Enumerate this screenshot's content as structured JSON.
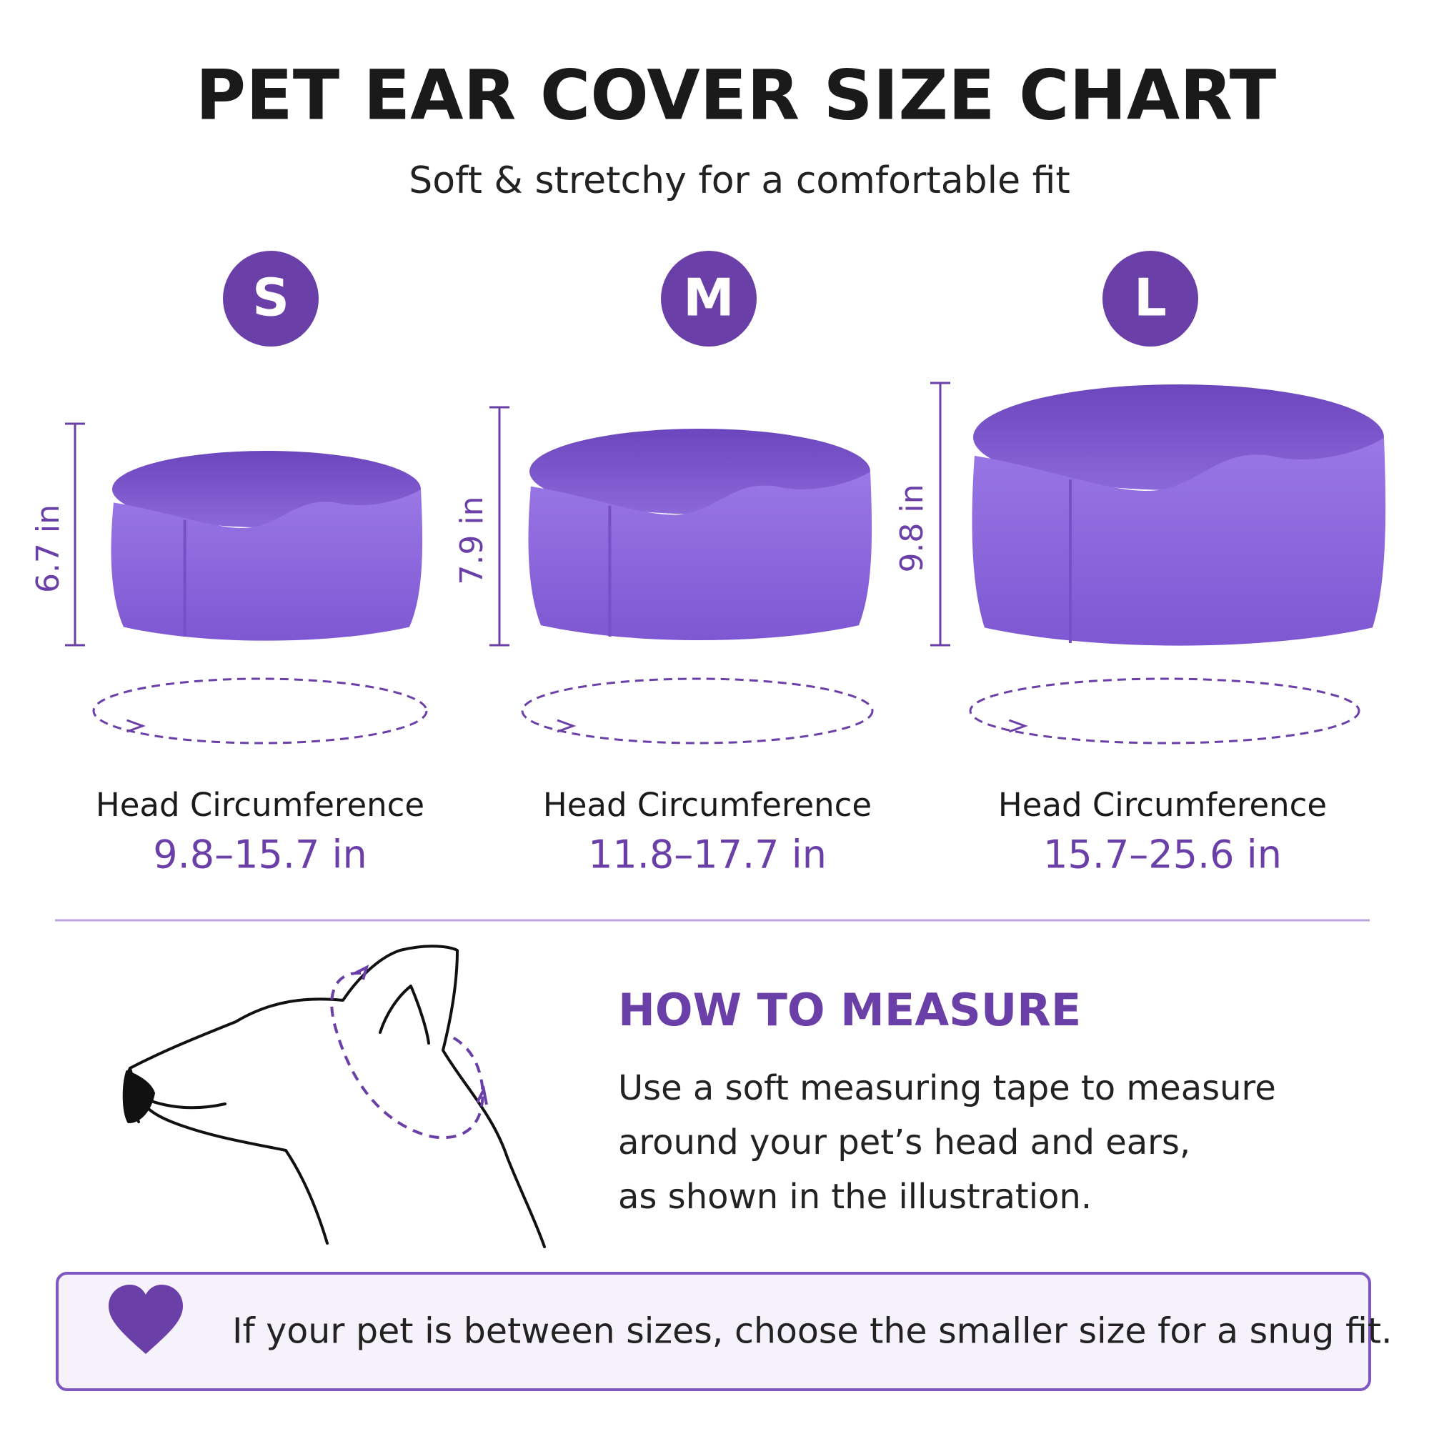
{
  "header": {
    "title": "PET EAR COVER SIZE CHART",
    "subtitle": "Soft & stretchy for a comfortable fit"
  },
  "sizes": [
    {
      "label": "S",
      "height": "6.7 in",
      "circumference_label": "Head Circumference",
      "range": "9.8–15.7 in"
    },
    {
      "label": "M",
      "height": "7.9 in",
      "circumference_label": "Head Circumference",
      "range": "11.8–17.7 in"
    },
    {
      "label": "L",
      "height": "9.8 in",
      "circumference_label": "Head Circumference",
      "range": "15.7–25.6 in"
    }
  ],
  "how_to": {
    "title": "HOW TO MEASURE",
    "lines": [
      "Use a soft measuring tape to measure",
      "around your pet’s head and ears,",
      "as shown in the illustration."
    ]
  },
  "note": {
    "text": "If your pet is between sizes, choose the smaller size for a snug fit."
  }
}
